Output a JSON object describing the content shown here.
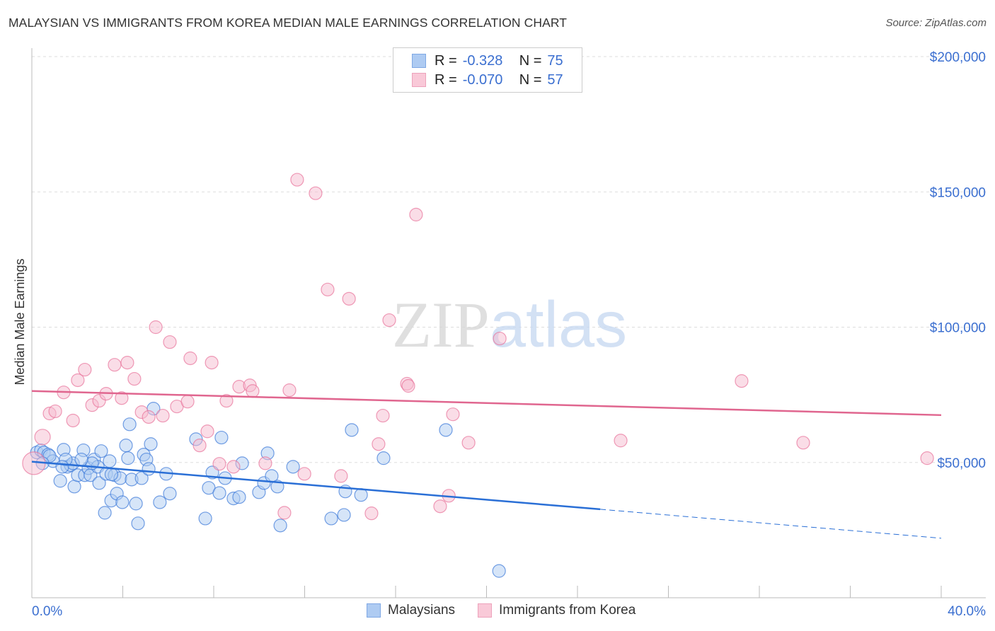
{
  "title": "MALAYSIAN VS IMMIGRANTS FROM KOREA MEDIAN MALE EARNINGS CORRELATION CHART",
  "source": "Source: ZipAtlas.com",
  "watermark": "ZIPatlas",
  "colors": {
    "blue": "#3b78d8",
    "blue_fill": "#aecbf2",
    "pink": "#e8729a",
    "pink_fill": "#f6bcd0",
    "axis_text": "#3b6fd0"
  },
  "legend": {
    "rows": [
      {
        "r_label": "R =",
        "r_value": "-0.328",
        "n_label": "N =",
        "n_value": "75"
      },
      {
        "r_label": "R =",
        "r_value": "-0.070",
        "n_label": "N =",
        "n_value": "57"
      }
    ]
  },
  "chart_data": {
    "type": "scatter",
    "title": "MALAYSIAN VS IMMIGRANTS FROM KOREA MEDIAN MALE EARNINGS CORRELATION CHART",
    "xlabel": "",
    "ylabel": "Median Male Earnings",
    "x_unit": "percent",
    "y_unit": "thousands USD",
    "xlim": [
      0,
      40
    ],
    "ylim": [
      0,
      200
    ],
    "x_tick_labels": [
      "0.0%",
      "40.0%"
    ],
    "y_ticks": [
      50,
      100,
      150,
      200
    ],
    "y_tick_labels": [
      "$50,000",
      "$100,000",
      "$150,000",
      "$200,000"
    ],
    "grid": true,
    "legend_position": "top-center",
    "series": [
      {
        "name": "Malaysians",
        "trend": {
          "x": [
            0,
            25,
            40
          ],
          "y": [
            50.3,
            32.7,
            22
          ],
          "solid_until": 25
        },
        "points": [
          [
            0.22,
            53.7
          ],
          [
            0.4,
            54.5
          ],
          [
            0.53,
            53.7
          ],
          [
            0.72,
            52.9
          ],
          [
            0.93,
            50.5
          ],
          [
            0.78,
            52.4
          ],
          [
            1.25,
            43.2
          ],
          [
            1.4,
            54.7
          ],
          [
            1.56,
            48.4
          ],
          [
            1.71,
            49.0
          ],
          [
            1.87,
            41.1
          ],
          [
            1.81,
            49.7
          ],
          [
            2.02,
            45.3
          ],
          [
            2.27,
            54.5
          ],
          [
            2.33,
            45.3
          ],
          [
            2.49,
            47.9
          ],
          [
            2.58,
            45.3
          ],
          [
            2.74,
            51.1
          ],
          [
            2.9,
            48.4
          ],
          [
            2.96,
            42.4
          ],
          [
            3.05,
            54.2
          ],
          [
            3.21,
            31.4
          ],
          [
            3.27,
            45.8
          ],
          [
            3.42,
            50.5
          ],
          [
            3.49,
            35.9
          ],
          [
            3.64,
            45.3
          ],
          [
            3.74,
            38.5
          ],
          [
            3.89,
            44.2
          ],
          [
            3.98,
            35.3
          ],
          [
            4.14,
            56.3
          ],
          [
            4.23,
            51.6
          ],
          [
            4.3,
            64.1
          ],
          [
            4.39,
            43.7
          ],
          [
            4.58,
            34.8
          ],
          [
            4.67,
            27.5
          ],
          [
            4.83,
            44.2
          ],
          [
            4.92,
            52.9
          ],
          [
            5.04,
            51.1
          ],
          [
            5.14,
            47.6
          ],
          [
            5.23,
            56.8
          ],
          [
            5.35,
            69.9
          ],
          [
            5.63,
            35.3
          ],
          [
            5.91,
            45.8
          ],
          [
            6.07,
            38.5
          ],
          [
            7.22,
            58.6
          ],
          [
            7.63,
            29.3
          ],
          [
            7.78,
            40.6
          ],
          [
            7.94,
            46.3
          ],
          [
            8.25,
            38.7
          ],
          [
            8.34,
            59.2
          ],
          [
            8.5,
            44.2
          ],
          [
            8.87,
            36.7
          ],
          [
            9.12,
            37.2
          ],
          [
            9.25,
            49.7
          ],
          [
            9.99,
            39.0
          ],
          [
            10.21,
            42.4
          ],
          [
            10.37,
            53.4
          ],
          [
            10.55,
            45.0
          ],
          [
            10.8,
            41.1
          ],
          [
            10.93,
            26.7
          ],
          [
            11.49,
            48.4
          ],
          [
            13.17,
            29.3
          ],
          [
            13.73,
            30.6
          ],
          [
            13.79,
            39.3
          ],
          [
            14.07,
            62.0
          ],
          [
            14.48,
            38.0
          ],
          [
            15.47,
            51.6
          ],
          [
            18.21,
            62.0
          ],
          [
            20.55,
            9.9
          ],
          [
            1.49,
            51.1
          ],
          [
            1.34,
            48.4
          ],
          [
            0.47,
            49.7
          ],
          [
            2.65,
            49.7
          ],
          [
            3.5,
            45.6
          ],
          [
            2.18,
            51.1
          ]
        ]
      },
      {
        "name": "Immigrants from Korea",
        "trend": {
          "x": [
            0,
            40
          ],
          "y": [
            76.4,
            67.5
          ],
          "solid_until": 40
        },
        "points": [
          [
            0.09,
            49.7
          ],
          [
            0.47,
            59.4
          ],
          [
            0.78,
            68.1
          ],
          [
            1.03,
            68.9
          ],
          [
            1.4,
            75.9
          ],
          [
            1.81,
            65.5
          ],
          [
            2.02,
            80.4
          ],
          [
            2.33,
            84.3
          ],
          [
            2.65,
            71.2
          ],
          [
            2.96,
            72.8
          ],
          [
            3.27,
            75.4
          ],
          [
            3.64,
            86.1
          ],
          [
            3.95,
            73.8
          ],
          [
            4.2,
            86.9
          ],
          [
            4.51,
            80.9
          ],
          [
            4.83,
            68.6
          ],
          [
            5.14,
            66.8
          ],
          [
            5.45,
            100.0
          ],
          [
            5.76,
            67.3
          ],
          [
            6.07,
            94.5
          ],
          [
            6.38,
            70.7
          ],
          [
            6.85,
            72.5
          ],
          [
            6.97,
            88.5
          ],
          [
            7.38,
            56.3
          ],
          [
            7.72,
            61.5
          ],
          [
            7.91,
            86.9
          ],
          [
            8.25,
            49.5
          ],
          [
            8.56,
            72.8
          ],
          [
            8.87,
            48.4
          ],
          [
            9.12,
            78.0
          ],
          [
            9.59,
            78.5
          ],
          [
            9.71,
            76.4
          ],
          [
            10.27,
            49.7
          ],
          [
            11.11,
            31.4
          ],
          [
            11.33,
            76.7
          ],
          [
            11.67,
            154.5
          ],
          [
            11.99,
            45.8
          ],
          [
            12.48,
            149.5
          ],
          [
            13.01,
            113.9
          ],
          [
            13.6,
            45.0
          ],
          [
            13.95,
            110.5
          ],
          [
            14.94,
            31.2
          ],
          [
            15.25,
            56.8
          ],
          [
            15.44,
            67.3
          ],
          [
            15.72,
            102.6
          ],
          [
            16.5,
            79.1
          ],
          [
            16.56,
            78.3
          ],
          [
            16.9,
            141.6
          ],
          [
            17.96,
            33.8
          ],
          [
            18.34,
            37.7
          ],
          [
            18.52,
            67.8
          ],
          [
            19.21,
            57.3
          ],
          [
            20.58,
            95.8
          ],
          [
            25.9,
            58.1
          ],
          [
            31.22,
            80.1
          ],
          [
            33.93,
            57.3
          ],
          [
            39.38,
            51.6
          ]
        ]
      }
    ]
  }
}
